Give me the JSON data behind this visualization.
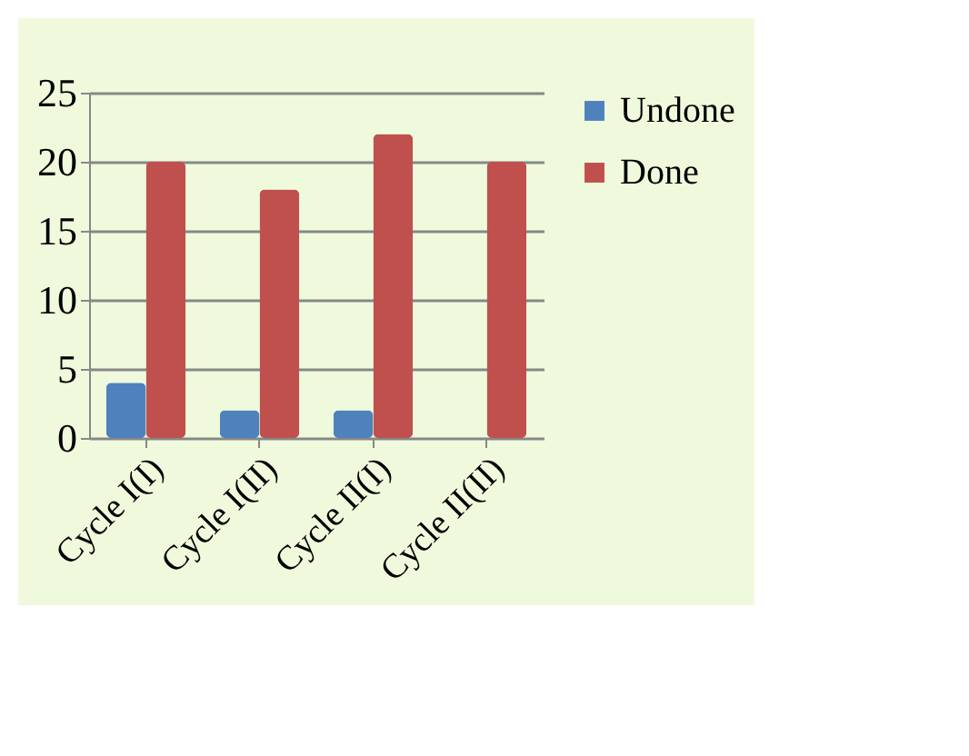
{
  "chart_data": {
    "type": "bar",
    "categories": [
      "Cycle I(I)",
      "Cycle I(II)",
      "Cycle II(I)",
      "Cycle II(II)"
    ],
    "series": [
      {
        "name": "Undone",
        "color": "#4f81bd",
        "values": [
          4,
          2,
          2,
          0
        ]
      },
      {
        "name": "Done",
        "color": "#c0504d",
        "values": [
          20,
          18,
          22,
          20
        ]
      }
    ],
    "ylim": [
      0,
      25
    ],
    "yticks": [
      0,
      5,
      10,
      15,
      20,
      25
    ],
    "grid": "y",
    "legend": "right"
  }
}
